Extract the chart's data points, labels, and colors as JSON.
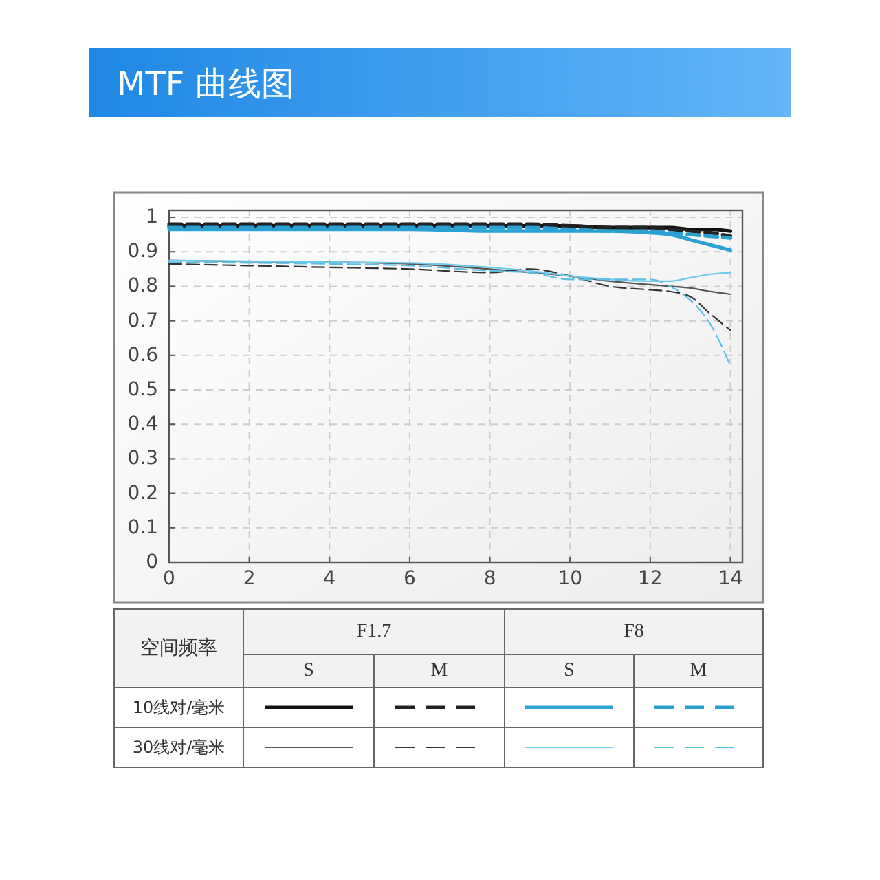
{
  "chart_data": {
    "type": "line",
    "title": "MTF 曲线图",
    "x": [
      0,
      2,
      4,
      6,
      8,
      9,
      10,
      11,
      12,
      12.5,
      13,
      13.5,
      14
    ],
    "xlim": [
      0,
      14.3
    ],
    "xticks": [
      0,
      2,
      4,
      6,
      8,
      10,
      12,
      14
    ],
    "ylim": [
      0,
      1.02
    ],
    "yticks": [
      0,
      0.1,
      0.2,
      0.3,
      0.4,
      0.5,
      0.6,
      0.7,
      0.8,
      0.9,
      1
    ],
    "grid": true,
    "series": [
      {
        "color": "#111111",
        "line_style": "solid",
        "values": [
          0.975,
          0.975,
          0.975,
          0.975,
          0.975,
          0.975,
          0.975,
          0.97,
          0.97,
          0.97,
          0.965,
          0.965,
          0.96
        ]
      },
      {
        "color": "#222222",
        "line_style": "dashed",
        "values": [
          0.98,
          0.98,
          0.98,
          0.98,
          0.98,
          0.98,
          0.975,
          0.97,
          0.97,
          0.965,
          0.96,
          0.955,
          0.945
        ]
      },
      {
        "color": "#29a3d6",
        "line_style": "solid",
        "values": [
          0.965,
          0.965,
          0.965,
          0.965,
          0.96,
          0.96,
          0.96,
          0.96,
          0.955,
          0.95,
          0.935,
          0.92,
          0.905
        ]
      },
      {
        "color": "#2a9fd0",
        "line_style": "dashed",
        "values": [
          0.97,
          0.97,
          0.97,
          0.97,
          0.97,
          0.97,
          0.965,
          0.96,
          0.96,
          0.955,
          0.95,
          0.945,
          0.94
        ]
      },
      {
        "color": "#555555",
        "line_style": "solid",
        "values": [
          0.875,
          0.872,
          0.87,
          0.865,
          0.85,
          0.84,
          0.83,
          0.815,
          0.805,
          0.8,
          0.795,
          0.785,
          0.777
        ]
      },
      {
        "color": "#333333",
        "line_style": "dashed",
        "values": [
          0.865,
          0.86,
          0.855,
          0.85,
          0.84,
          0.85,
          0.83,
          0.8,
          0.79,
          0.785,
          0.77,
          0.72,
          0.673
        ]
      },
      {
        "color": "#6ccbef",
        "line_style": "solid",
        "values": [
          0.875,
          0.873,
          0.87,
          0.868,
          0.855,
          0.845,
          0.83,
          0.82,
          0.815,
          0.815,
          0.825,
          0.835,
          0.84
        ]
      },
      {
        "color": "#5bbfe6",
        "line_style": "dashed",
        "values": [
          0.87,
          0.868,
          0.865,
          0.86,
          0.845,
          0.84,
          0.82,
          0.82,
          0.82,
          0.8,
          0.76,
          0.69,
          0.57
        ]
      }
    ],
    "annotations": [
      "空间频率",
      "F1.7",
      "F8",
      "S",
      "M",
      "S",
      "M",
      "10线对/毫米",
      "30线对/毫米"
    ]
  }
}
